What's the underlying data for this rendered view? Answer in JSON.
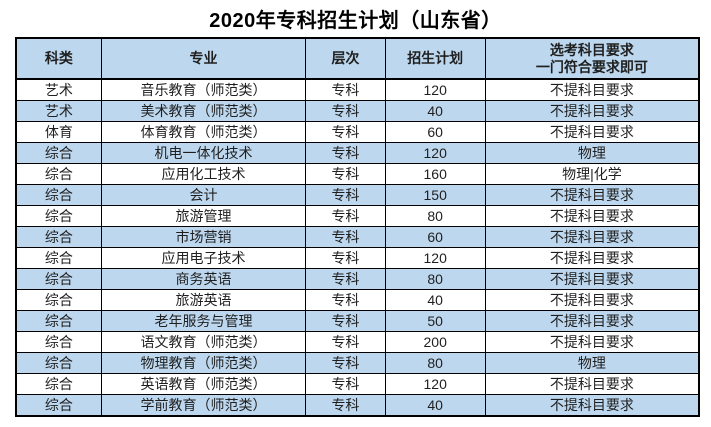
{
  "title": "2020年专科招生计划（山东省）",
  "colors": {
    "header_bg": "#bdd7ee",
    "alt_row_bg": "#bdd7ee",
    "border": "#000000",
    "text": "#1f1f1f",
    "title": "#000000"
  },
  "table": {
    "headers": [
      "科类",
      "专业",
      "层次",
      "招生计划",
      "选考科目要求\n一门符合要求即可"
    ],
    "rows": [
      [
        "艺术",
        "音乐教育（师范类）",
        "专科",
        "120",
        "不提科目要求"
      ],
      [
        "艺术",
        "美术教育（师范类）",
        "专科",
        "40",
        "不提科目要求"
      ],
      [
        "体育",
        "体育教育（师范类）",
        "专科",
        "60",
        "不提科目要求"
      ],
      [
        "综合",
        "机电一体化技术",
        "专科",
        "120",
        "物理"
      ],
      [
        "综合",
        "应用化工技术",
        "专科",
        "160",
        "物理|化学"
      ],
      [
        "综合",
        "会计",
        "专科",
        "150",
        "不提科目要求"
      ],
      [
        "综合",
        "旅游管理",
        "专科",
        "80",
        "不提科目要求"
      ],
      [
        "综合",
        "市场营销",
        "专科",
        "60",
        "不提科目要求"
      ],
      [
        "综合",
        "应用电子技术",
        "专科",
        "120",
        "不提科目要求"
      ],
      [
        "综合",
        "商务英语",
        "专科",
        "80",
        "不提科目要求"
      ],
      [
        "综合",
        "旅游英语",
        "专科",
        "40",
        "不提科目要求"
      ],
      [
        "综合",
        "老年服务与管理",
        "专科",
        "50",
        "不提科目要求"
      ],
      [
        "综合",
        "语文教育（师范类）",
        "专科",
        "200",
        "不提科目要求"
      ],
      [
        "综合",
        "物理教育（师范类）",
        "专科",
        "80",
        "物理"
      ],
      [
        "综合",
        "英语教育（师范类）",
        "专科",
        "120",
        "不提科目要求"
      ],
      [
        "综合",
        "学前教育（师范类）",
        "专科",
        "40",
        "不提科目要求"
      ]
    ],
    "column_names": [
      "category-cell",
      "major-cell",
      "level-cell",
      "plan-cell",
      "subject-req-cell"
    ]
  }
}
